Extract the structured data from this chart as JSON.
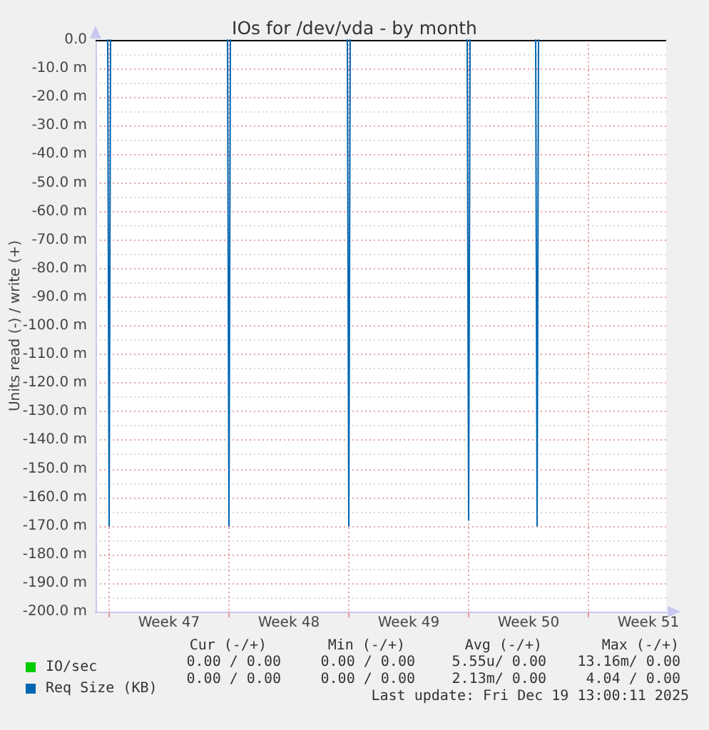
{
  "chart_data": {
    "type": "line",
    "title": "IOs for /dev/vda - by month",
    "ylabel": "Units read (-) / write (+)",
    "xlim": [
      "2025-11-16T05:00",
      "2025-12-19T13:00"
    ],
    "xticks": [
      {
        "value": "2025-11-17T00:00",
        "label": null
      },
      {
        "value": "2025-11-20T12:00",
        "label": "Week 47"
      },
      {
        "value": "2025-11-24T00:00",
        "label": null
      },
      {
        "value": "2025-11-27T12:00",
        "label": "Week 48"
      },
      {
        "value": "2025-12-01T00:00",
        "label": null
      },
      {
        "value": "2025-12-04T12:00",
        "label": "Week 49"
      },
      {
        "value": "2025-12-08T00:00",
        "label": null
      },
      {
        "value": "2025-12-11T12:00",
        "label": "Week 50"
      },
      {
        "value": "2025-12-15T00:00",
        "label": null
      },
      {
        "value": "2025-12-18T12:00",
        "label": "Week 51"
      }
    ],
    "ylim": [
      -200,
      0
    ],
    "yticks": [
      {
        "value": -200,
        "label": "-200.0 m"
      },
      {
        "value": -190,
        "label": "-190.0 m"
      },
      {
        "value": -180,
        "label": "-180.0 m"
      },
      {
        "value": -170,
        "label": "-170.0 m"
      },
      {
        "value": -160,
        "label": "-160.0 m"
      },
      {
        "value": -150,
        "label": "-150.0 m"
      },
      {
        "value": -140,
        "label": "-140.0 m"
      },
      {
        "value": -130,
        "label": "-130.0 m"
      },
      {
        "value": -120,
        "label": "-120.0 m"
      },
      {
        "value": -110,
        "label": "-110.0 m"
      },
      {
        "value": -100,
        "label": "-100.0 m"
      },
      {
        "value": -90,
        "label": "-90.0 m"
      },
      {
        "value": -80,
        "label": "-80.0 m"
      },
      {
        "value": -70,
        "label": "-70.0 m"
      },
      {
        "value": -60,
        "label": "-60.0 m"
      },
      {
        "value": -50,
        "label": "-50.0 m"
      },
      {
        "value": -40,
        "label": "-40.0 m"
      },
      {
        "value": -30,
        "label": "-30.0 m"
      },
      {
        "value": -20,
        "label": "-20.0 m"
      },
      {
        "value": -10,
        "label": "-10.0 m"
      },
      {
        "value": 0,
        "label": "0.0"
      }
    ],
    "series": [
      {
        "name": "IO/sec",
        "color": "#00cc00"
      },
      {
        "name": "Req Size (KB)",
        "color": "#0066b3",
        "x": [
          "2025-11-16T22:00",
          "2025-11-17T00:00",
          "2025-11-17T02:00",
          "2025-11-20T12:00",
          "2025-11-23T22:00",
          "2025-11-24T00:00",
          "2025-11-24T02:00",
          "2025-11-27T12:00",
          "2025-11-30T22:00",
          "2025-12-01T00:00",
          "2025-12-01T02:00",
          "2025-12-04T12:00",
          "2025-12-07T22:00",
          "2025-12-08T00:00",
          "2025-12-08T02:00",
          "2025-12-10T00:00",
          "2025-12-11T22:00",
          "2025-12-12T00:00",
          "2025-12-12T02:00"
        ],
        "values": [
          0,
          -170,
          0,
          null,
          0,
          -170,
          0,
          null,
          0,
          -170,
          0,
          null,
          0,
          -168,
          0,
          null,
          0,
          -170,
          0
        ]
      }
    ],
    "ref_lines": [
      {
        "axis": "y",
        "value": 0,
        "color": "#000000"
      }
    ],
    "grid": true,
    "legend": "bottom left",
    "annotations": [
      "Cur (-/+)",
      "Min (-/+)",
      "Avg (-/+)",
      "Max (-/+)",
      "0.00 / 0.00",
      "0.00 / 0.00",
      "5.55u/ 0.00",
      "13.16m/ 0.00",
      "0.00 / 0.00",
      "0.00 / 0.00",
      "2.13m/ 0.00",
      "4.04 / 0.00",
      "Last update: Fri Dec 19 13:00:11 2025"
    ]
  }
}
